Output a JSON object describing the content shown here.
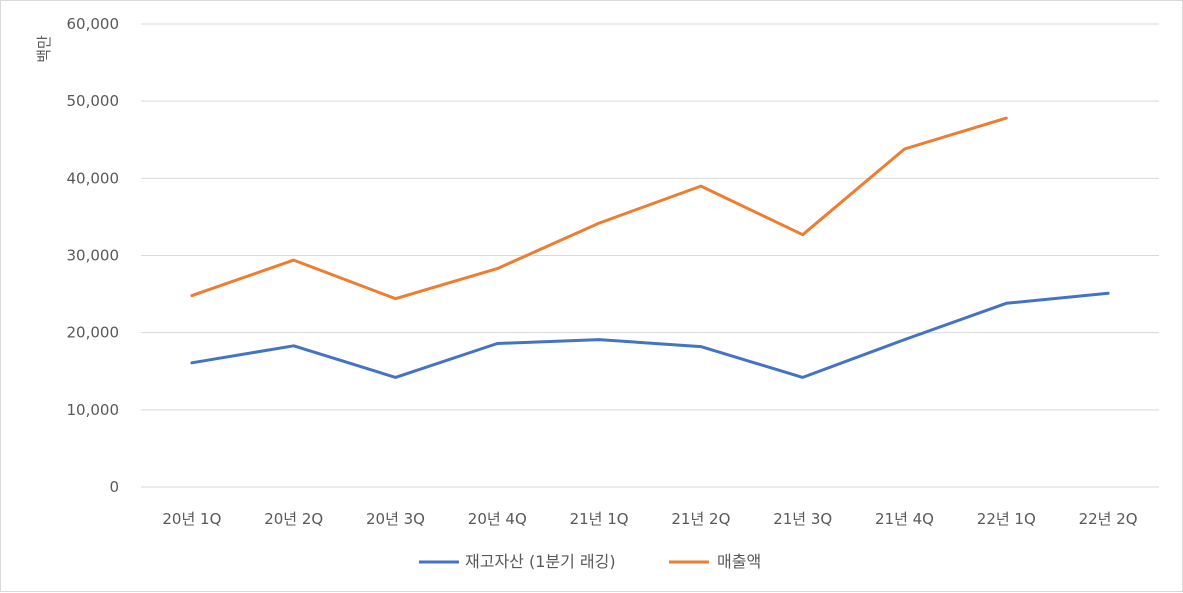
{
  "chart_data": {
    "type": "line",
    "title": "",
    "xlabel": "",
    "ylabel": "백만",
    "ylim": [
      0,
      60000
    ],
    "yticks": [
      "0",
      "10,000",
      "20,000",
      "30,000",
      "40,000",
      "50,000",
      "60,000"
    ],
    "grid": "horizontal",
    "legend_position": "bottom",
    "categories": [
      "20년 1Q",
      "20년 2Q",
      "20년 3Q",
      "20년 4Q",
      "21년 1Q",
      "21년 2Q",
      "21년 3Q",
      "21년 4Q",
      "22년 1Q",
      "22년 2Q"
    ],
    "series": [
      {
        "name": "재고자산 (1분기 래깅)",
        "color": "#4472c4",
        "values": [
          16100,
          18300,
          14200,
          18600,
          19100,
          18200,
          14200,
          19100,
          23800,
          25100
        ]
      },
      {
        "name": "매출액",
        "color": "#ed7d31",
        "values": [
          24800,
          29400,
          24400,
          28300,
          34200,
          39000,
          32700,
          43800,
          47800,
          null
        ]
      }
    ]
  }
}
